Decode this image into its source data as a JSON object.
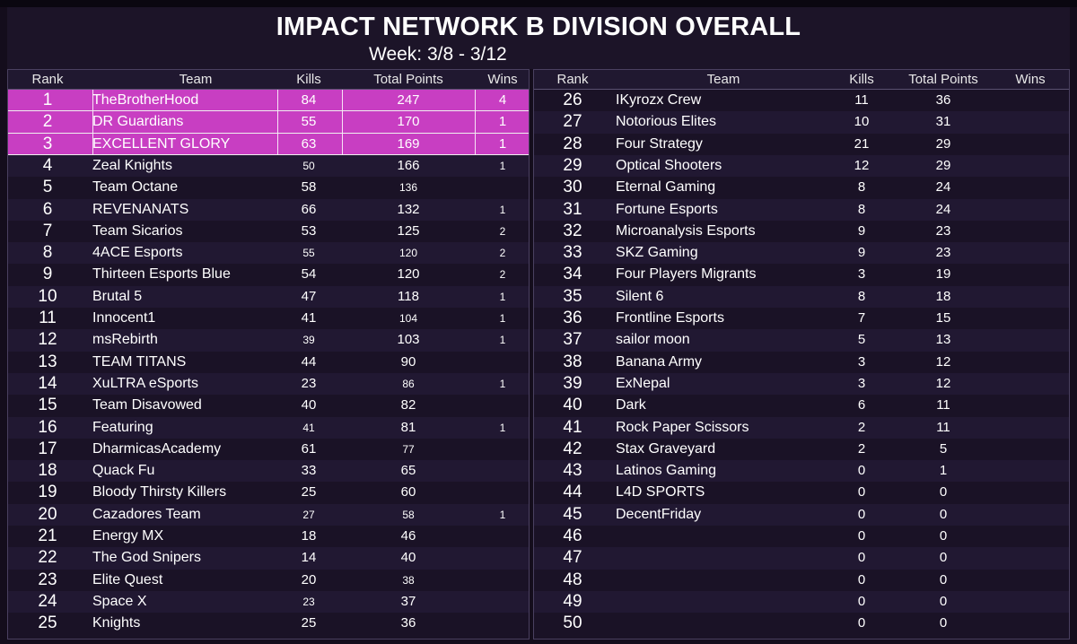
{
  "header": {
    "title": "IMPACT NETWORK B DIVISION OVERALL",
    "week": "Week: 3/8 - 3/12"
  },
  "columns": {
    "rank": "Rank",
    "team": "Team",
    "kills": "Kills",
    "points": "Total Points",
    "wins": "Wins"
  },
  "colors": {
    "highlight": "#c83ec2",
    "background": "#140d1c"
  },
  "left_rows": [
    {
      "rank": "1",
      "team": "TheBrotherHood",
      "kills": "84",
      "points": "247",
      "wins": "4",
      "highlight": true
    },
    {
      "rank": "2",
      "team": "DR Guardians",
      "kills": "55",
      "points": "170",
      "wins": "1",
      "highlight": true
    },
    {
      "rank": "3",
      "team": "EXCELLENT GLORY",
      "kills": "63",
      "points": "169",
      "wins": "1",
      "highlight": true
    },
    {
      "rank": "4",
      "team": "Zeal Knights",
      "kills": "50",
      "points": "166",
      "wins": "1"
    },
    {
      "rank": "5",
      "team": "Team Octane",
      "kills": "58",
      "points": "136",
      "wins": ""
    },
    {
      "rank": "6",
      "team": "REVENANATS",
      "kills": "66",
      "points": "132",
      "wins": "1"
    },
    {
      "rank": "7",
      "team": "Team Sicarios",
      "kills": "53",
      "points": "125",
      "wins": "2"
    },
    {
      "rank": "8",
      "team": "4ACE Esports",
      "kills": "55",
      "points": "120",
      "wins": "2"
    },
    {
      "rank": "9",
      "team": "Thirteen Esports Blue",
      "kills": "54",
      "points": "120",
      "wins": "2"
    },
    {
      "rank": "10",
      "team": "Brutal 5",
      "kills": "47",
      "points": "118",
      "wins": "1"
    },
    {
      "rank": "11",
      "team": "Innocent1",
      "kills": "41",
      "points": "104",
      "wins": "1"
    },
    {
      "rank": "12",
      "team": "msRebirth",
      "kills": "39",
      "points": "103",
      "wins": "1"
    },
    {
      "rank": "13",
      "team": "TEAM TITANS",
      "kills": "44",
      "points": "90",
      "wins": ""
    },
    {
      "rank": "14",
      "team": "XuLTRA eSports",
      "kills": "23",
      "points": "86",
      "wins": "1"
    },
    {
      "rank": "15",
      "team": "Team Disavowed",
      "kills": "40",
      "points": "82",
      "wins": ""
    },
    {
      "rank": "16",
      "team": "Featuring",
      "kills": "41",
      "points": "81",
      "wins": "1"
    },
    {
      "rank": "17",
      "team": "DharmicasAcademy",
      "kills": "61",
      "points": "77",
      "wins": ""
    },
    {
      "rank": "18",
      "team": "Quack Fu",
      "kills": "33",
      "points": "65",
      "wins": ""
    },
    {
      "rank": "19",
      "team": "Bloody Thirsty Killers",
      "kills": "25",
      "points": "60",
      "wins": ""
    },
    {
      "rank": "20",
      "team": "Cazadores Team",
      "kills": "27",
      "points": "58",
      "wins": "1"
    },
    {
      "rank": "21",
      "team": "Energy MX",
      "kills": "18",
      "points": "46",
      "wins": ""
    },
    {
      "rank": "22",
      "team": "The God Snipers",
      "kills": "14",
      "points": "40",
      "wins": ""
    },
    {
      "rank": "23",
      "team": "Elite Quest",
      "kills": "20",
      "points": "38",
      "wins": ""
    },
    {
      "rank": "24",
      "team": "Space X",
      "kills": "23",
      "points": "37",
      "wins": ""
    },
    {
      "rank": "25",
      "team": "Knights",
      "kills": "25",
      "points": "36",
      "wins": ""
    }
  ],
  "right_rows": [
    {
      "rank": "26",
      "team": "IKyrozx Crew",
      "kills": "11",
      "points": "36",
      "wins": ""
    },
    {
      "rank": "27",
      "team": "Notorious Elites",
      "kills": "10",
      "points": "31",
      "wins": ""
    },
    {
      "rank": "28",
      "team": "Four Strategy",
      "kills": "21",
      "points": "29",
      "wins": ""
    },
    {
      "rank": "29",
      "team": "Optical Shooters",
      "kills": "12",
      "points": "29",
      "wins": ""
    },
    {
      "rank": "30",
      "team": "Eternal Gaming",
      "kills": "8",
      "points": "24",
      "wins": ""
    },
    {
      "rank": "31",
      "team": "Fortune Esports",
      "kills": "8",
      "points": "24",
      "wins": ""
    },
    {
      "rank": "32",
      "team": "Microanalysis Esports",
      "kills": "9",
      "points": "23",
      "wins": ""
    },
    {
      "rank": "33",
      "team": "SKZ Gaming",
      "kills": "9",
      "points": "23",
      "wins": ""
    },
    {
      "rank": "34",
      "team": "Four Players Migrants",
      "kills": "3",
      "points": "19",
      "wins": ""
    },
    {
      "rank": "35",
      "team": "Silent 6",
      "kills": "8",
      "points": "18",
      "wins": ""
    },
    {
      "rank": "36",
      "team": "Frontline Esports",
      "kills": "7",
      "points": "15",
      "wins": ""
    },
    {
      "rank": "37",
      "team": "sailor moon",
      "kills": "5",
      "points": "13",
      "wins": ""
    },
    {
      "rank": "38",
      "team": "Banana Army",
      "kills": "3",
      "points": "12",
      "wins": ""
    },
    {
      "rank": "39",
      "team": "ExNepal",
      "kills": "3",
      "points": "12",
      "wins": ""
    },
    {
      "rank": "40",
      "team": "Dark",
      "kills": "6",
      "points": "11",
      "wins": ""
    },
    {
      "rank": "41",
      "team": "Rock Paper Scissors",
      "kills": "2",
      "points": "11",
      "wins": ""
    },
    {
      "rank": "42",
      "team": "Stax Graveyard",
      "kills": "2",
      "points": "5",
      "wins": ""
    },
    {
      "rank": "43",
      "team": "Latinos Gaming",
      "kills": "0",
      "points": "1",
      "wins": ""
    },
    {
      "rank": "44",
      "team": "L4D SPORTS",
      "kills": "0",
      "points": "0",
      "wins": ""
    },
    {
      "rank": "45",
      "team": "DecentFriday",
      "kills": "0",
      "points": "0",
      "wins": ""
    },
    {
      "rank": "46",
      "team": "",
      "kills": "0",
      "points": "0",
      "wins": ""
    },
    {
      "rank": "47",
      "team": "",
      "kills": "0",
      "points": "0",
      "wins": ""
    },
    {
      "rank": "48",
      "team": "",
      "kills": "0",
      "points": "0",
      "wins": ""
    },
    {
      "rank": "49",
      "team": "",
      "kills": "0",
      "points": "0",
      "wins": ""
    },
    {
      "rank": "50",
      "team": "",
      "kills": "0",
      "points": "0",
      "wins": ""
    }
  ]
}
